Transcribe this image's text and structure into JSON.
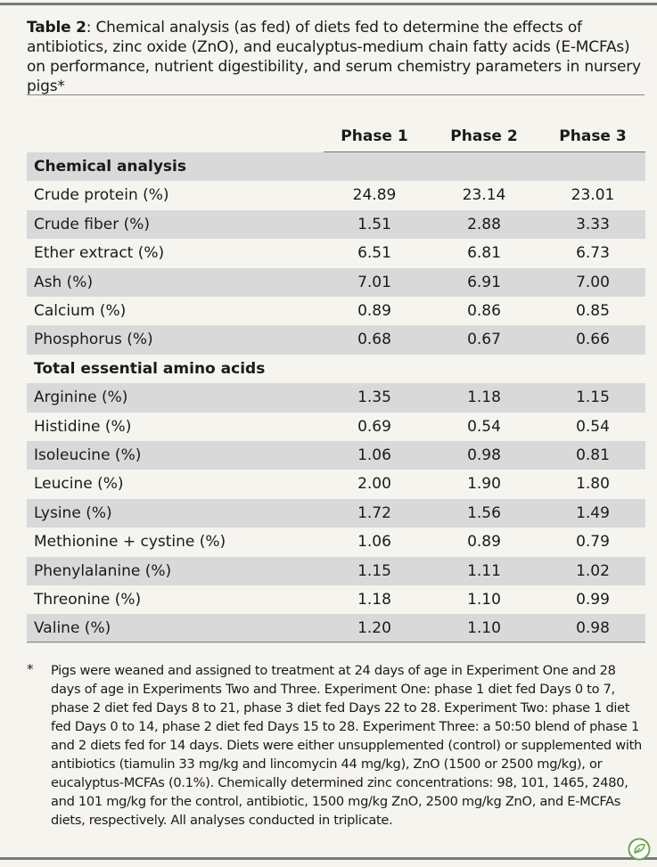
{
  "table": {
    "title_label": "Table 2",
    "title_text": ": Chemical analysis (as fed) of diets fed to determine the effects of antibiotics, zinc oxide (ZnO), and eucalyptus-medium chain fatty acids (E-MCFAs) on performance, nutrient digestibility, and serum chemistry parameters in nursery pigs*",
    "columns": [
      "Phase 1",
      "Phase 2",
      "Phase 3"
    ],
    "sections": [
      {
        "heading": "Chemical analysis",
        "rows": [
          [
            "Crude protein (%)",
            "24.89",
            "23.14",
            "23.01"
          ],
          [
            "Crude  fiber (%)",
            "1.51",
            "2.88",
            "3.33"
          ],
          [
            "Ether extract (%)",
            "6.51",
            "6.81",
            "6.73"
          ],
          [
            "Ash (%)",
            "7.01",
            "6.91",
            "7.00"
          ],
          [
            "Calcium (%)",
            "0.89",
            "0.86",
            "0.85"
          ],
          [
            "Phosphorus (%)",
            "0.68",
            "0.67",
            "0.66"
          ]
        ]
      },
      {
        "heading": "Total essential amino acids",
        "rows": [
          [
            "Arginine (%)",
            "1.35",
            "1.18",
            "1.15"
          ],
          [
            "Histidine (%)",
            "0.69",
            "0.54",
            "0.54"
          ],
          [
            "Isoleucine (%)",
            "1.06",
            "0.98",
            "0.81"
          ],
          [
            "Leucine (%)",
            "2.00",
            "1.90",
            "1.80"
          ],
          [
            "Lysine (%)",
            "1.72",
            "1.56",
            "1.49"
          ],
          [
            "Methionine + cystine (%)",
            "1.06",
            "0.89",
            "0.79"
          ],
          [
            "Phenylalanine (%)",
            "1.15",
            "1.11",
            "1.02"
          ],
          [
            "Threonine (%)",
            "1.18",
            "1.10",
            "0.99"
          ],
          [
            "Valine (%)",
            "1.20",
            "1.10",
            "0.98"
          ]
        ]
      }
    ],
    "footnote_mark": "*",
    "footnote": "Pigs were weaned and assigned to treatment at 24 days of age in Experiment One and 28 days of age in Experiments Two and Three. Experiment One: phase 1 diet fed Days 0 to 7, phase 2 diet fed Days 8 to 21, phase 3 diet fed Days 22 to 28. Experiment Two: phase 1 diet fed Days 0 to 14, phase 2 diet fed Days 15 to 28. Experiment Three: a 50:50 blend of phase 1 and 2 diets fed for 14 days. Diets were either unsupplemented (control) or supplemented with antibiotics (tiamulin 33 mg/kg and lincomycin 44 mg/kg), ZnO (1500 or 2500 mg/kg), or eucalyptus-MCFAs (0.1%). Chemically determined zinc concentrations: 98, 101, 1465, 2480, and 101 mg/kg for the control, antibiotic, 1500 mg/kg ZnO, 2500 mg/kg ZnO, and E-MCFAs diets, respectively. All analyses conducted in triplicate."
  }
}
